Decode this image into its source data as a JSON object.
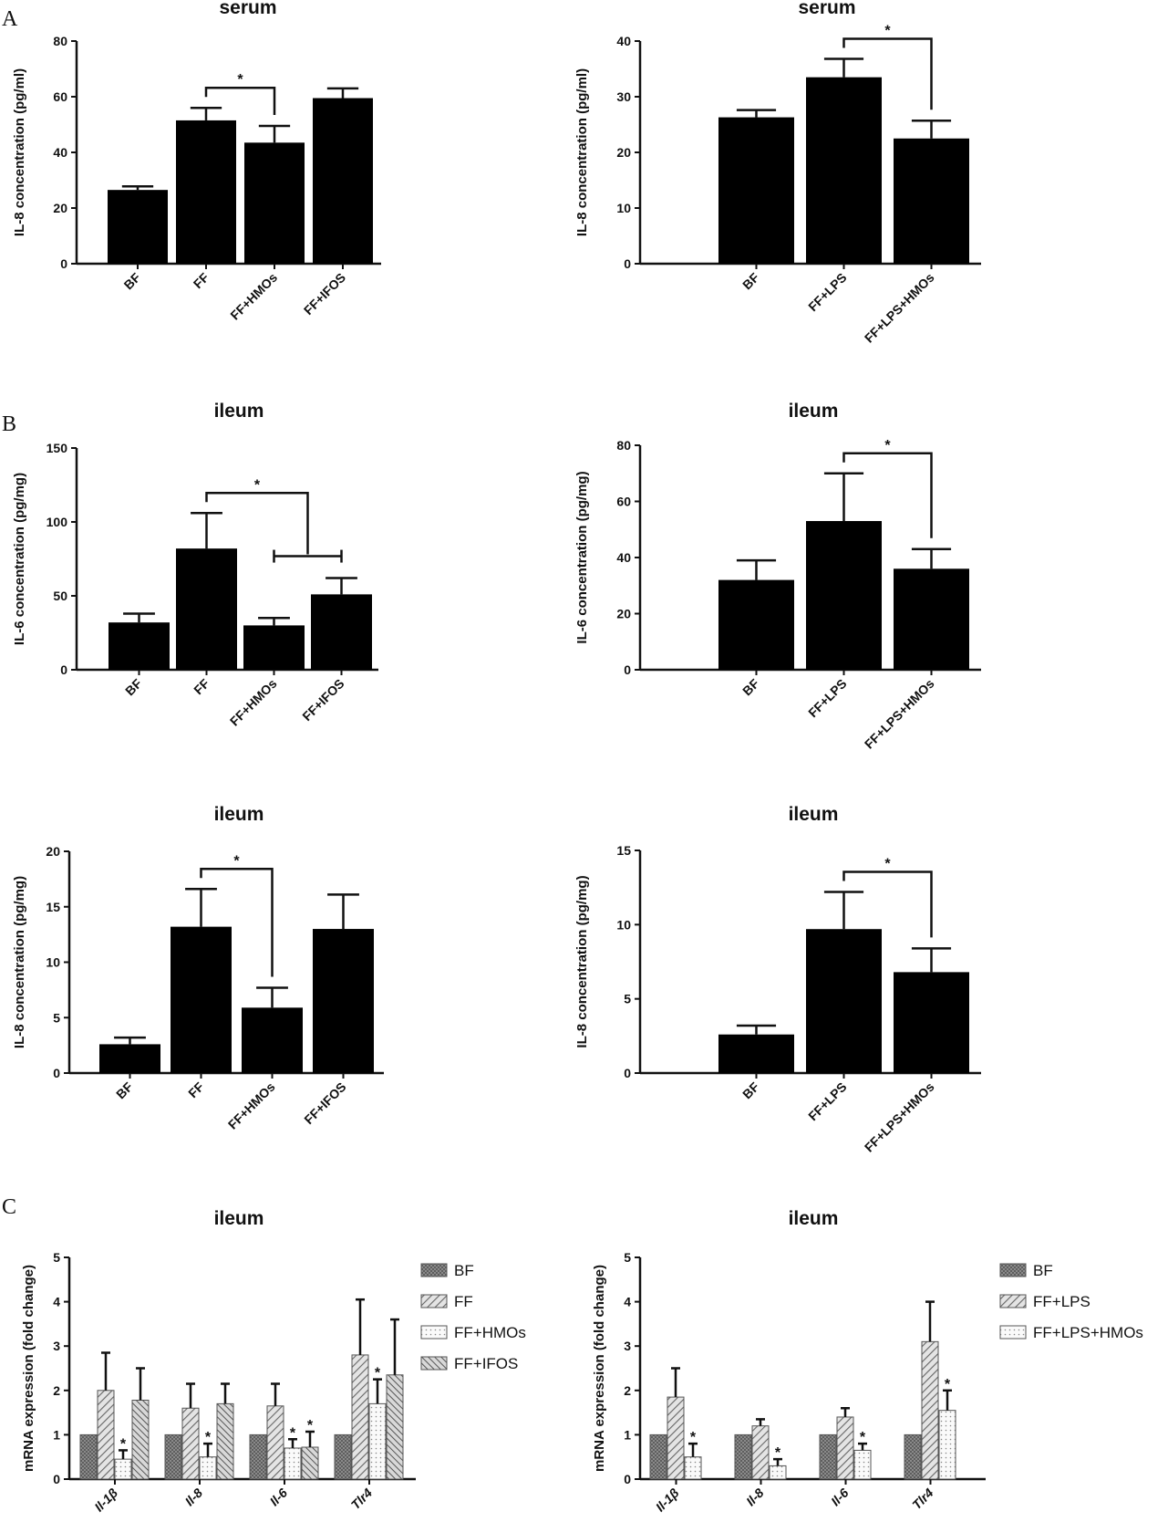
{
  "panel_labels": [
    "A",
    "B",
    "C"
  ],
  "chart_data": [
    {
      "type": "bar",
      "title": "serum",
      "ylabel": "IL-8 concentration (pg/ml)",
      "categories": [
        "BF",
        "FF",
        "FF+HMOs",
        "FF+IFOS"
      ],
      "values": [
        26.5,
        51.5,
        43.5,
        59.5
      ],
      "errors": [
        1.3,
        4.5,
        6.0,
        3.5
      ],
      "ylim": [
        0,
        80
      ],
      "yticks": [
        "0",
        "20",
        "40",
        "60",
        "80"
      ],
      "brackets": [
        {
          "from": 1,
          "to": 2,
          "label": "*"
        }
      ]
    },
    {
      "type": "bar",
      "title": "serum",
      "ylabel": "IL-8 concentration (pg/ml)",
      "categories": [
        "BF",
        "FF+LPS",
        "FF+LPS+HMOs"
      ],
      "values": [
        26.3,
        33.5,
        22.5
      ],
      "errors": [
        1.3,
        3.3,
        3.2
      ],
      "ylim": [
        0,
        40
      ],
      "yticks": [
        "0",
        "10",
        "20",
        "30",
        "40"
      ],
      "brackets": [
        {
          "from": 1,
          "to": 2,
          "label": "*"
        }
      ]
    },
    {
      "type": "bar",
      "title": "ileum",
      "ylabel": "IL-6 concentration (pg/mg)",
      "categories": [
        "BF",
        "FF",
        "FF+HMOs",
        "FF+IFOS"
      ],
      "values": [
        32,
        82,
        30,
        51
      ],
      "errors": [
        6,
        24,
        5,
        11
      ],
      "ylim": [
        0,
        150
      ],
      "yticks": [
        "0",
        "50",
        "100",
        "150"
      ],
      "brackets": [
        {
          "from": 1,
          "to": 2.5,
          "label": "*"
        }
      ],
      "hbar": {
        "from": 2,
        "to": 3
      }
    },
    {
      "type": "bar",
      "title": "ileum",
      "ylabel": "IL-6 concentration (pg/mg)",
      "categories": [
        "BF",
        "FF+LPS",
        "FF+LPS+HMOs"
      ],
      "values": [
        32,
        53,
        36
      ],
      "errors": [
        7,
        17,
        7
      ],
      "ylim": [
        0,
        80
      ],
      "yticks": [
        "0",
        "20",
        "40",
        "60",
        "80"
      ],
      "brackets": [
        {
          "from": 1,
          "to": 2,
          "label": "*"
        }
      ]
    },
    {
      "type": "bar",
      "title": "ileum",
      "ylabel": "IL-8 concentration (pg/mg)",
      "categories": [
        "BF",
        "FF",
        "FF+HMOs",
        "FF+IFOS"
      ],
      "values": [
        2.6,
        13.2,
        5.9,
        13.0
      ],
      "errors": [
        0.6,
        3.4,
        1.8,
        3.1
      ],
      "ylim": [
        0,
        20
      ],
      "yticks": [
        "0",
        "5",
        "10",
        "15",
        "20"
      ],
      "brackets": [
        {
          "from": 1,
          "to": 2,
          "label": "*"
        }
      ]
    },
    {
      "type": "bar",
      "title": "ileum",
      "ylabel": "IL-8 concentration (pg/mg)",
      "categories": [
        "BF",
        "FF+LPS",
        "FF+LPS+HMOs"
      ],
      "values": [
        2.6,
        9.7,
        6.8
      ],
      "errors": [
        0.6,
        2.5,
        1.6
      ],
      "ylim": [
        0,
        15
      ],
      "yticks": [
        "0",
        "5",
        "10",
        "15"
      ],
      "brackets": [
        {
          "from": 1,
          "to": 2,
          "label": "*"
        }
      ]
    },
    {
      "type": "bar",
      "title": "ileum",
      "ylabel": "mRNA expression (fold change)",
      "categories": [
        "Il-1β",
        "Il-8",
        "Il-6",
        "Tlr4"
      ],
      "ylim": [
        0,
        5
      ],
      "yticks": [
        "0",
        "1",
        "2",
        "3",
        "4",
        "5"
      ],
      "legend_position": "right",
      "series": [
        {
          "name": "BF",
          "values": [
            1,
            1,
            1,
            1
          ],
          "errors": [
            0,
            0,
            0,
            0
          ],
          "stars": [
            false,
            false,
            false,
            false
          ]
        },
        {
          "name": "FF",
          "values": [
            2.0,
            1.6,
            1.65,
            2.8
          ],
          "errors": [
            0.85,
            0.55,
            0.5,
            1.25
          ],
          "stars": [
            false,
            false,
            false,
            false
          ]
        },
        {
          "name": "FF+HMOs",
          "values": [
            0.45,
            0.5,
            0.7,
            1.7
          ],
          "errors": [
            0.2,
            0.3,
            0.2,
            0.55
          ],
          "stars": [
            true,
            true,
            true,
            true
          ]
        },
        {
          "name": "FF+IFOS",
          "values": [
            1.78,
            1.7,
            0.72,
            2.35
          ],
          "errors": [
            0.72,
            0.45,
            0.35,
            1.25
          ],
          "stars": [
            false,
            false,
            true,
            false
          ]
        }
      ]
    },
    {
      "type": "bar",
      "title": "ileum",
      "ylabel": "mRNA expression (fold change)",
      "categories": [
        "Il-1β",
        "Il-8",
        "Il-6",
        "Tlr4"
      ],
      "ylim": [
        0,
        5
      ],
      "yticks": [
        "0",
        "1",
        "2",
        "3",
        "4",
        "5"
      ],
      "legend_position": "right",
      "series": [
        {
          "name": "BF",
          "values": [
            1,
            1,
            1,
            1
          ],
          "errors": [
            0,
            0,
            0,
            0
          ],
          "stars": [
            false,
            false,
            false,
            false
          ]
        },
        {
          "name": "FF+LPS",
          "values": [
            1.85,
            1.2,
            1.4,
            3.1
          ],
          "errors": [
            0.65,
            0.15,
            0.2,
            0.9
          ],
          "stars": [
            false,
            false,
            false,
            false
          ]
        },
        {
          "name": "FF+LPS+HMOs",
          "values": [
            0.5,
            0.3,
            0.65,
            1.55
          ],
          "errors": [
            0.3,
            0.15,
            0.15,
            0.45
          ],
          "stars": [
            true,
            true,
            true,
            true
          ]
        }
      ]
    }
  ]
}
